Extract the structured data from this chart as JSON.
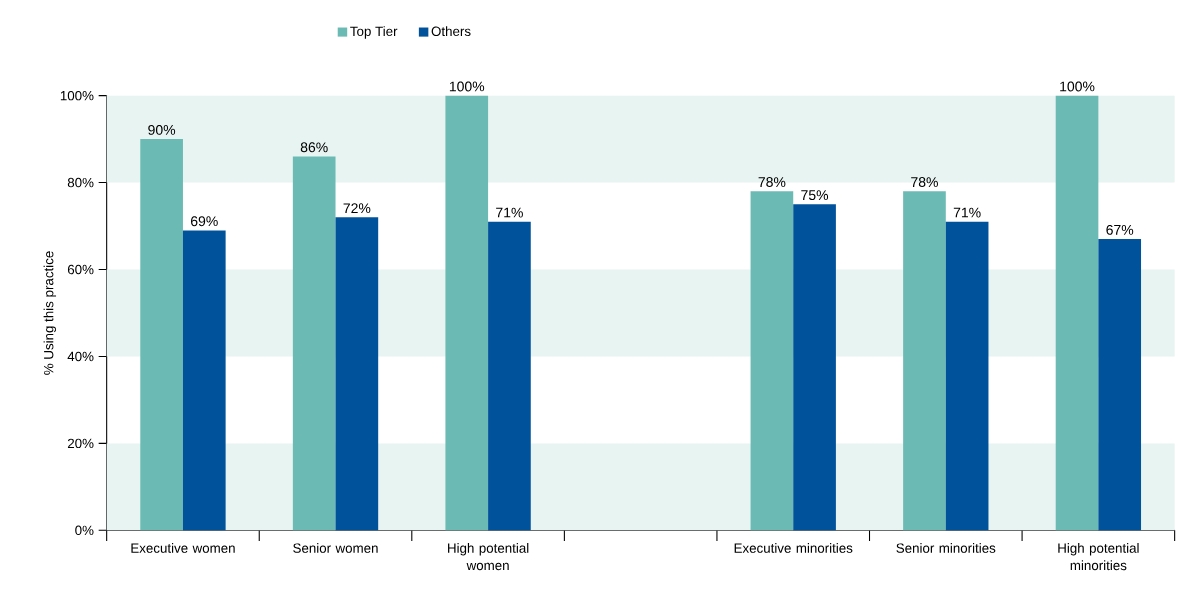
{
  "chart_data": {
    "type": "bar",
    "ylabel": "% Using this practice",
    "categories": [
      "Executive women",
      "Senior women",
      "High potential women",
      null,
      "Executive minorities",
      "Senior minorities",
      "High potential minorities"
    ],
    "series": [
      {
        "name": "Top Tier",
        "color": "#6bbab4",
        "values": [
          90,
          86,
          100,
          null,
          78,
          78,
          100
        ],
        "value_labels": [
          "90%",
          "86%",
          "100%",
          null,
          "78%",
          "78%",
          "100%"
        ]
      },
      {
        "name": "Others",
        "color": "#00529b",
        "values": [
          69,
          72,
          71,
          null,
          75,
          71,
          67
        ],
        "value_labels": [
          "69%",
          "72%",
          "71%",
          null,
          "75%",
          "71%",
          "67%"
        ]
      }
    ],
    "ylim": [
      0,
      100
    ],
    "yticks": [
      {
        "value": 0,
        "label": "0%"
      },
      {
        "value": 20,
        "label": "20%"
      },
      {
        "value": 40,
        "label": "40%"
      },
      {
        "value": 60,
        "label": "60%"
      },
      {
        "value": 80,
        "label": "80%"
      },
      {
        "value": 100,
        "label": "100%"
      }
    ],
    "bands": [
      {
        "axis": "y",
        "from": 0,
        "to": 20,
        "color": "#e8f4f2"
      },
      {
        "axis": "y",
        "from": 40,
        "to": 60,
        "color": "#e8f4f2"
      },
      {
        "axis": "y",
        "from": 80,
        "to": 100,
        "color": "#e8f4f2"
      }
    ],
    "legend": "top"
  }
}
